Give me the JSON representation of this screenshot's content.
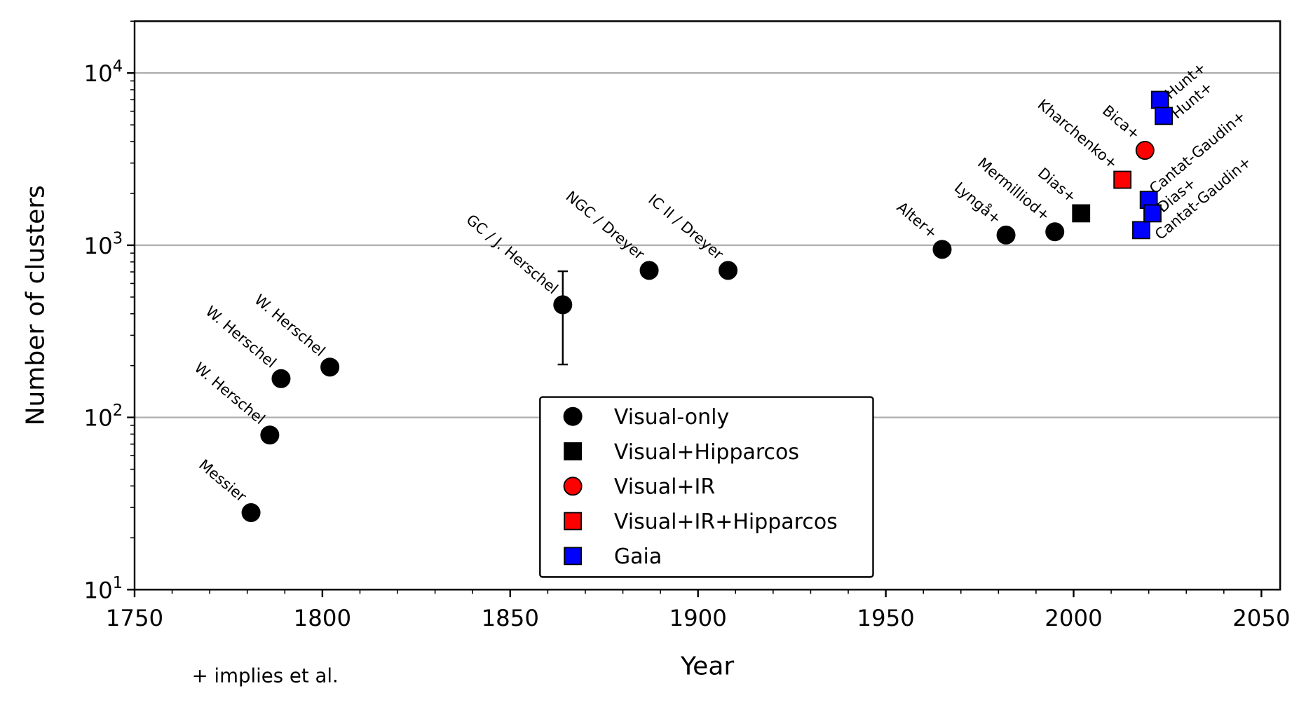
{
  "chart_data": {
    "type": "scatter",
    "xlabel": "Year",
    "ylabel": "Number of clusters",
    "xlim": [
      1750,
      2055
    ],
    "ylim": [
      10,
      20000
    ],
    "yscale": "log",
    "xticks": [
      "1750",
      "1800",
      "1850",
      "1900",
      "1950",
      "2000",
      "2050"
    ],
    "yticks": [
      {
        "base": "10",
        "exp": "1"
      },
      {
        "base": "10",
        "exp": "2"
      },
      {
        "base": "10",
        "exp": "3"
      },
      {
        "base": "10",
        "exp": "4"
      }
    ],
    "grid": "horizontal major",
    "legend_placement": "lower-center",
    "footnote": "+ implies et al.",
    "categories": [
      {
        "name": "Visual-only",
        "marker": "circle",
        "color": "#000000"
      },
      {
        "name": "Visual+Hipparcos",
        "marker": "square",
        "color": "#000000"
      },
      {
        "name": "Visual+IR",
        "marker": "circle",
        "color": "#ff0000"
      },
      {
        "name": "Visual+IR+Hipparcos",
        "marker": "square",
        "color": "#ff0000"
      },
      {
        "name": "Gaia",
        "marker": "square",
        "color": "#0000ff"
      }
    ],
    "points": [
      {
        "label": "Messier",
        "year": 1781,
        "count": 28,
        "category": 0,
        "side": "left"
      },
      {
        "label": "W. Herschel",
        "year": 1786,
        "count": 79,
        "category": 0,
        "side": "left"
      },
      {
        "label": "W. Herschel",
        "year": 1789,
        "count": 168,
        "category": 0,
        "side": "left"
      },
      {
        "label": "W. Herschel",
        "year": 1802,
        "count": 196,
        "category": 0,
        "side": "left"
      },
      {
        "label": "GC / J. Herschel",
        "year": 1864,
        "count": 451,
        "category": 0,
        "side": "left",
        "error": [
          203,
          706
        ]
      },
      {
        "label": "NGC / Dreyer",
        "year": 1887,
        "count": 714,
        "category": 0,
        "side": "left"
      },
      {
        "label": "IC II / Dreyer",
        "year": 1908,
        "count": 714,
        "category": 0,
        "side": "left"
      },
      {
        "label": "Alter+",
        "year": 1965,
        "count": 946,
        "category": 0,
        "side": "left"
      },
      {
        "label": "Lyngå+",
        "year": 1982,
        "count": 1146,
        "category": 0,
        "side": "left"
      },
      {
        "label": "Mermilliod+",
        "year": 1995,
        "count": 1197,
        "category": 0,
        "side": "left"
      },
      {
        "label": "Dias+",
        "year": 2002,
        "count": 1532,
        "category": 1,
        "side": "left"
      },
      {
        "label": "Kharchenko+",
        "year": 2013,
        "count": 2400,
        "category": 3,
        "side": "left"
      },
      {
        "label": "Bica+",
        "year": 2019,
        "count": 3557,
        "category": 2,
        "side": "left"
      },
      {
        "label": "Cantat-Gaudin+",
        "year": 2018,
        "count": 1224,
        "category": 4,
        "side": "right"
      },
      {
        "label": "Cantat-Gaudin+",
        "year": 2020,
        "count": 1834,
        "category": 4,
        "side": "right"
      },
      {
        "label": "Dias+",
        "year": 2021,
        "count": 1532,
        "category": 4,
        "side": "right"
      },
      {
        "label": "Hunt+",
        "year": 2023,
        "count": 6986,
        "category": 4,
        "side": "right"
      },
      {
        "label": "Hunt+",
        "year": 2024,
        "count": 5636,
        "category": 4,
        "side": "right"
      }
    ]
  }
}
